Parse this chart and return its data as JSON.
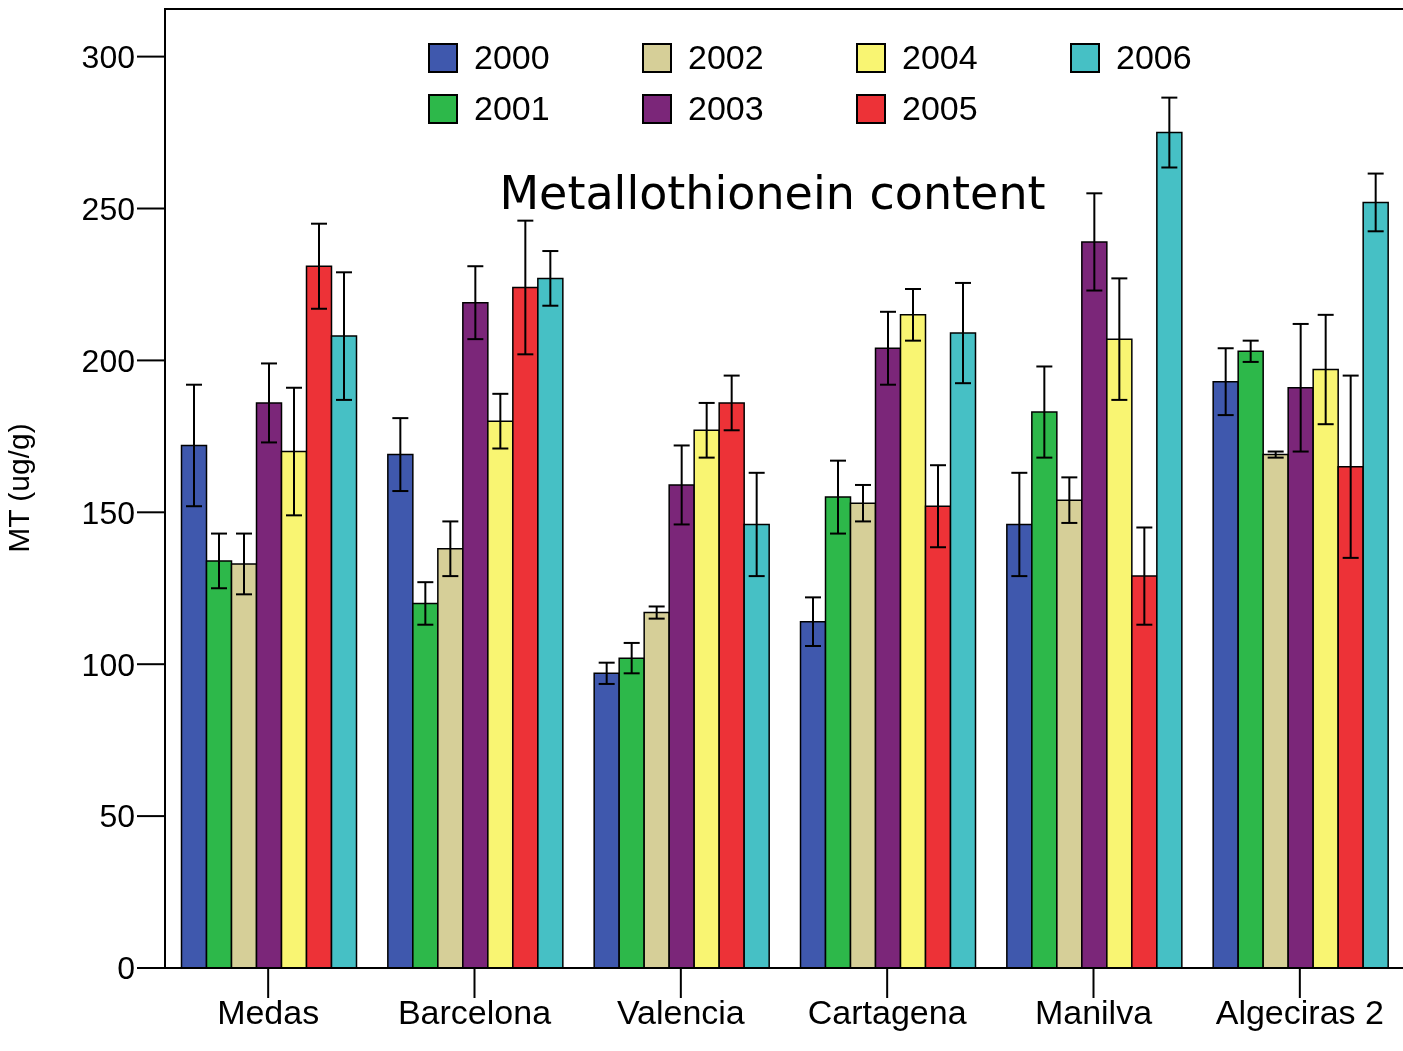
{
  "chart_data": {
    "type": "bar",
    "title": "Metallothionein content",
    "ylabel": "MT (ug/g)",
    "categories": [
      "Medas",
      "Barcelona",
      "Valencia",
      "Cartagena",
      "Manilva",
      "Algeciras 2"
    ],
    "series": [
      {
        "name": "2000",
        "color": "#3f58ad",
        "values": [
          172,
          169,
          97,
          114,
          146,
          193
        ],
        "errors": [
          20,
          12,
          3.5,
          8,
          17,
          11
        ]
      },
      {
        "name": "2001",
        "color": "#2db84a",
        "values": [
          134,
          120,
          102,
          155,
          183,
          203
        ],
        "errors": [
          9,
          7,
          5,
          12,
          15,
          3.5
        ]
      },
      {
        "name": "2002",
        "color": "#d6cf98",
        "values": [
          133,
          138,
          117,
          153,
          154,
          169
        ],
        "errors": [
          10,
          9,
          2,
          6,
          7.5,
          1
        ]
      },
      {
        "name": "2003",
        "color": "#7b2679",
        "values": [
          186,
          219,
          159,
          204,
          239,
          191
        ],
        "errors": [
          13,
          12,
          13,
          12,
          16,
          21
        ]
      },
      {
        "name": "2004",
        "color": "#f9f572",
        "values": [
          170,
          180,
          177,
          215,
          207,
          197
        ],
        "errors": [
          21,
          9,
          9,
          8.5,
          20,
          18
        ]
      },
      {
        "name": "2005",
        "color": "#ed3237",
        "values": [
          231,
          224,
          186,
          152,
          129,
          165
        ],
        "errors": [
          14,
          22,
          9,
          13.5,
          16,
          30
        ]
      },
      {
        "name": "2006",
        "color": "#46c0c5",
        "values": [
          208,
          227,
          146,
          209,
          275,
          252
        ],
        "errors": [
          21,
          9,
          17,
          16.5,
          11.5,
          9.5
        ]
      }
    ],
    "ylim": [
      0,
      316
    ],
    "yticks": [
      0,
      50,
      100,
      150,
      200,
      250,
      300
    ],
    "grid": false,
    "legend": "top"
  }
}
